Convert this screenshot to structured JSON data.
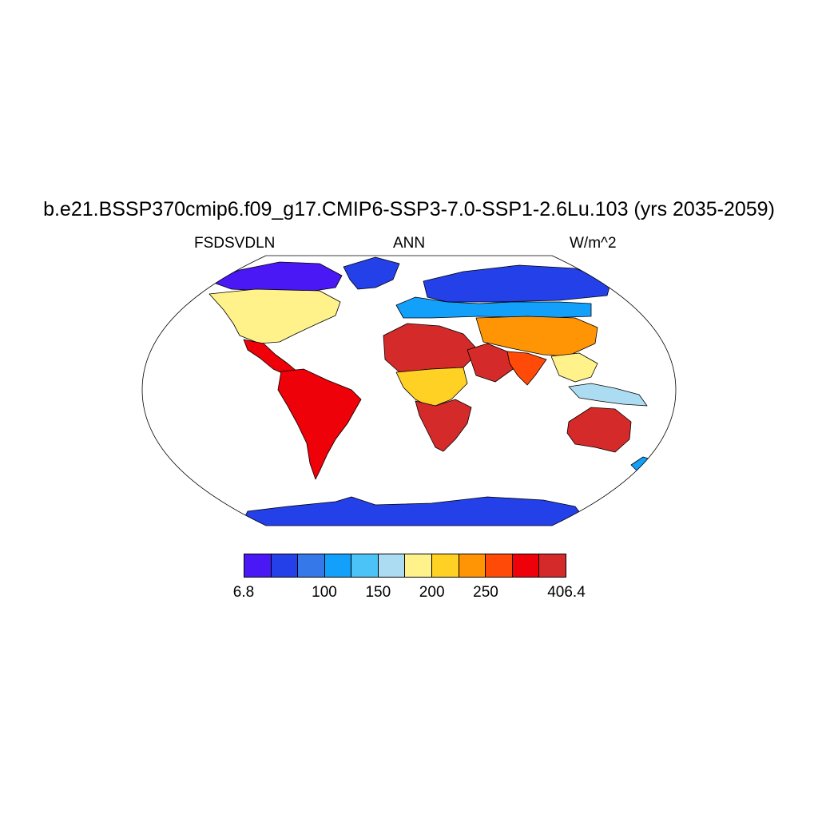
{
  "title": "b.e21.BSSP370cmip6.f09_g17.CMIP6-SSP3-7.0-SSP1-2.6Lu.103 (yrs 2035-2059)",
  "variable": "FSDSVDLN",
  "season": "ANN",
  "units": "W/m^2",
  "colorbar": {
    "colors": [
      "#4a18f5",
      "#2440e8",
      "#3578ea",
      "#13a0fa",
      "#4bc3f6",
      "#acdcf2",
      "#fff28a",
      "#ffd125",
      "#ff9405",
      "#ff4a08",
      "#ee0108",
      "#d42a2a"
    ],
    "labels": [
      "6.8",
      "100",
      "150",
      "200",
      "250",
      "406.4"
    ]
  },
  "chart_data": {
    "type": "heatmap",
    "projection": "Robinson",
    "variable": "FSDSVDLN",
    "season": "ANN",
    "units": "W/m^2",
    "range": [
      6.8,
      406.4
    ],
    "legend": "bottom",
    "regions": [
      {
        "region": "Antarctica",
        "level": 1
      },
      {
        "region": "Greenland",
        "level": 1
      },
      {
        "region": "Arctic Canada",
        "level": 0
      },
      {
        "region": "Siberia",
        "level": 1
      },
      {
        "region": "Northern Europe",
        "level": 3
      },
      {
        "region": "North America",
        "level": 6
      },
      {
        "region": "Central America",
        "level": 10
      },
      {
        "region": "South America",
        "level": 10
      },
      {
        "region": "Sahara",
        "level": 11
      },
      {
        "region": "Central Africa",
        "level": 7
      },
      {
        "region": "Southern Africa",
        "level": 11
      },
      {
        "region": "Arabian Peninsula",
        "level": 11
      },
      {
        "region": "Central Asia",
        "level": 8
      },
      {
        "region": "India",
        "level": 9
      },
      {
        "region": "Southeast Asia",
        "level": 6
      },
      {
        "region": "Indonesia",
        "level": 5
      },
      {
        "region": "Australia",
        "level": 11
      },
      {
        "region": "New Zealand",
        "level": 3
      }
    ]
  }
}
